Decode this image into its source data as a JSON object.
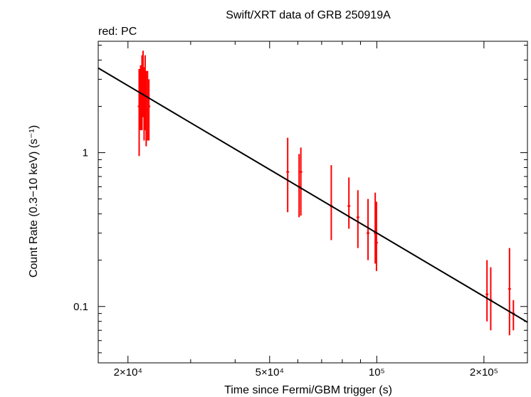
{
  "chart_data": {
    "type": "scatter",
    "title": "Swift/XRT data of GRB 250919A",
    "subtitle": "red: PC",
    "xlabel": "Time since Fermi/GBM trigger (s)",
    "ylabel": "Count Rate (0.3−10 keV) (s⁻¹)",
    "xscale": "log",
    "yscale": "log",
    "xlim": [
      16500,
      265000
    ],
    "ylim": [
      0.043,
      5.3
    ],
    "x_ticks": [
      {
        "value": 20000,
        "label": "2×10⁴"
      },
      {
        "value": 50000,
        "label": "5×10⁴"
      },
      {
        "value": 100000,
        "label": "10⁵"
      },
      {
        "value": 200000,
        "label": "2×10⁵"
      }
    ],
    "y_ticks": [
      {
        "value": 1,
        "label": "1"
      },
      {
        "value": 0.1,
        "label": "0.1"
      }
    ],
    "grid": false,
    "colors": {
      "data": "#ff0000",
      "fit": "#000000",
      "axes": "#000000"
    },
    "fit_line": {
      "x": [
        16500,
        265000
      ],
      "y": [
        3.55,
        0.079
      ]
    },
    "series": [
      {
        "name": "PC",
        "color": "#ff0000",
        "points": [
          {
            "x": 21500,
            "y": 2.0,
            "ylo": 0.95,
            "yhi": 3.5
          },
          {
            "x": 21700,
            "y": 2.8,
            "ylo": 1.4,
            "yhi": 3.7
          },
          {
            "x": 21900,
            "y": 2.4,
            "ylo": 1.4,
            "yhi": 4.3
          },
          {
            "x": 22050,
            "y": 3.0,
            "ylo": 1.7,
            "yhi": 4.6
          },
          {
            "x": 22200,
            "y": 2.2,
            "ylo": 1.2,
            "yhi": 3.6
          },
          {
            "x": 22350,
            "y": 2.6,
            "ylo": 1.4,
            "yhi": 4.3
          },
          {
            "x": 22500,
            "y": 1.9,
            "ylo": 1.1,
            "yhi": 3.4
          },
          {
            "x": 22700,
            "y": 2.3,
            "ylo": 1.2,
            "yhi": 3.4
          },
          {
            "x": 22900,
            "y": 2.0,
            "ylo": 1.2,
            "yhi": 3.0
          },
          {
            "x": 56200,
            "y": 0.75,
            "ylo": 0.41,
            "yhi": 1.25
          },
          {
            "x": 60500,
            "y": 0.6,
            "ylo": 0.38,
            "yhi": 0.98
          },
          {
            "x": 61200,
            "y": 0.75,
            "ylo": 0.39,
            "yhi": 1.08
          },
          {
            "x": 74500,
            "y": 0.45,
            "ylo": 0.27,
            "yhi": 0.83
          },
          {
            "x": 83500,
            "y": 0.45,
            "ylo": 0.32,
            "yhi": 0.69
          },
          {
            "x": 88500,
            "y": 0.38,
            "ylo": 0.24,
            "yhi": 0.57
          },
          {
            "x": 94500,
            "y": 0.3,
            "ylo": 0.2,
            "yhi": 0.5
          },
          {
            "x": 99000,
            "y": 0.3,
            "ylo": 0.19,
            "yhi": 0.55
          },
          {
            "x": 99800,
            "y": 0.26,
            "ylo": 0.17,
            "yhi": 0.48
          },
          {
            "x": 204000,
            "y": 0.12,
            "ylo": 0.08,
            "yhi": 0.2
          },
          {
            "x": 209000,
            "y": 0.11,
            "ylo": 0.07,
            "yhi": 0.18
          },
          {
            "x": 236000,
            "y": 0.13,
            "ylo": 0.065,
            "yhi": 0.24
          },
          {
            "x": 242000,
            "y": 0.09,
            "ylo": 0.07,
            "yhi": 0.11
          }
        ]
      }
    ]
  }
}
